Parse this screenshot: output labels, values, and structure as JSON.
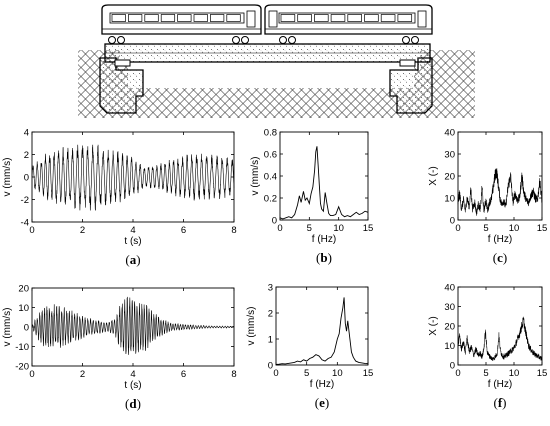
{
  "illustration": {
    "subject": "train on bridge"
  },
  "chart_data": [
    {
      "id": "a",
      "type": "line",
      "label": "a",
      "xlabel": "t (s)",
      "ylabel": "v (mm/s)",
      "xlim": [
        0,
        8
      ],
      "ylim": [
        -4,
        4
      ],
      "xticks": [
        0,
        2,
        4,
        6,
        8
      ],
      "yticks": [
        -4,
        -2,
        0,
        2,
        4
      ],
      "signal": "continuous vibration record; peak amplitude about 3.2 mm/s near t = 2 s, amplitude 1-2.5 mm/s elsewhere",
      "envelope": {
        "x": [
          0,
          0.3,
          0.6,
          1.0,
          1.5,
          2.0,
          2.3,
          2.7,
          3.0,
          3.5,
          4.0,
          4.5,
          5.0,
          5.5,
          6.0,
          6.5,
          7.0,
          7.5,
          8.0
        ],
        "y": [
          1.0,
          1.6,
          2.2,
          2.6,
          2.8,
          3.2,
          3.1,
          2.9,
          2.6,
          2.3,
          1.8,
          1.0,
          1.2,
          1.6,
          2.0,
          2.2,
          2.1,
          2.0,
          1.8
        ]
      },
      "carrier_hz": 5.5
    },
    {
      "id": "b",
      "type": "line",
      "label": "b",
      "xlabel": "f (Hz)",
      "ylabel": "v (mm/s)",
      "xlim": [
        0,
        15
      ],
      "ylim": [
        0,
        0.8
      ],
      "xticks": [
        0,
        5,
        10,
        15
      ],
      "yticks": [
        0,
        0.2,
        0.4,
        0.6,
        0.8
      ],
      "x": [
        0,
        0.5,
        1,
        1.5,
        2,
        2.5,
        3,
        3.3,
        3.6,
        4,
        4.3,
        4.6,
        5,
        5.3,
        5.6,
        5.9,
        6.1,
        6.3,
        6.5,
        6.7,
        6.9,
        7.1,
        7.4,
        7.7,
        8,
        8.3,
        8.6,
        9,
        9.5,
        10,
        10.5,
        11,
        11.5,
        12,
        12.5,
        13,
        13.5,
        14,
        14.5,
        15
      ],
      "y": [
        0.02,
        0.01,
        0.02,
        0.03,
        0.02,
        0.05,
        0.14,
        0.22,
        0.16,
        0.26,
        0.18,
        0.2,
        0.15,
        0.24,
        0.3,
        0.45,
        0.62,
        0.67,
        0.5,
        0.32,
        0.15,
        0.1,
        0.08,
        0.25,
        0.15,
        0.06,
        0.04,
        0.04,
        0.05,
        0.12,
        0.05,
        0.03,
        0.04,
        0.03,
        0.05,
        0.07,
        0.05,
        0.06,
        0.08,
        0.07
      ]
    },
    {
      "id": "c",
      "type": "line",
      "label": "c",
      "xlabel": "f (Hz)",
      "ylabel": "X (-)",
      "xlim": [
        0,
        15
      ],
      "ylim": [
        0,
        40
      ],
      "xticks": [
        0,
        5,
        10,
        15
      ],
      "yticks": [
        0,
        10,
        20,
        30,
        40
      ],
      "x": [
        0,
        0.3,
        0.6,
        1,
        1.3,
        1.6,
        2,
        2.3,
        2.6,
        3,
        3.3,
        3.6,
        4,
        4.3,
        4.6,
        5,
        5.3,
        5.6,
        6,
        6.3,
        6.6,
        6.9,
        7.2,
        7.5,
        7.8,
        8.1,
        8.5,
        9,
        9.4,
        9.8,
        10.2,
        10.6,
        11,
        11.4,
        11.8,
        12.2,
        12.6,
        13,
        13.4,
        13.8,
        14.2,
        14.6,
        15
      ],
      "y": [
        8,
        12,
        5,
        9,
        4,
        10,
        6,
        14,
        5,
        8,
        3,
        7,
        5,
        15,
        4,
        9,
        4,
        8,
        10,
        15,
        20,
        22,
        16,
        10,
        7,
        9,
        6,
        16,
        20,
        8,
        12,
        9,
        10,
        20,
        12,
        9,
        8,
        11,
        13,
        10,
        9,
        18,
        8
      ],
      "band": 3
    },
    {
      "id": "d",
      "type": "line",
      "label": "d",
      "xlabel": "t (s)",
      "ylabel": "v (mm/s)",
      "xlim": [
        0,
        8
      ],
      "ylim": [
        -20,
        20
      ],
      "xticks": [
        0,
        2,
        4,
        6,
        8
      ],
      "yticks": [
        -20,
        -10,
        0,
        10,
        20
      ],
      "signal": "two train-passage bursts: 0.2-2.5 s (peak about 12 mm/s) and 3.5-4.8 s (peak about 17 mm/s), small residual after 5 s",
      "envelope": {
        "x": [
          0,
          0.2,
          0.5,
          1.0,
          1.5,
          2.0,
          2.5,
          3.0,
          3.3,
          3.5,
          3.8,
          4.1,
          4.5,
          4.8,
          5.2,
          5.6,
          6.0,
          6.5,
          7.0,
          8.0
        ],
        "y": [
          0.5,
          6,
          11,
          12,
          9,
          6,
          4,
          2.5,
          5,
          12,
          17,
          16,
          13,
          8,
          4,
          2,
          1.5,
          1,
          0.6,
          0.4
        ]
      },
      "carrier_hz": 10
    },
    {
      "id": "e",
      "type": "line",
      "label": "e",
      "xlabel": "f (Hz)",
      "ylabel": "v (mm/s)",
      "xlim": [
        0,
        15
      ],
      "ylim": [
        0,
        3
      ],
      "xticks": [
        0,
        5,
        10,
        15
      ],
      "yticks": [
        0,
        1,
        2,
        3
      ],
      "x": [
        0,
        0.5,
        1,
        1.5,
        2,
        2.5,
        3,
        3.5,
        4,
        4.5,
        5,
        5.5,
        6,
        6.5,
        7,
        7.5,
        8,
        8.5,
        9,
        9.5,
        10,
        10.3,
        10.6,
        10.9,
        11.1,
        11.3,
        11.5,
        11.7,
        12,
        12.3,
        12.6,
        13,
        13.5,
        14,
        14.5,
        15
      ],
      "y": [
        0.02,
        0.03,
        0.05,
        0.04,
        0.06,
        0.08,
        0.1,
        0.15,
        0.12,
        0.2,
        0.15,
        0.25,
        0.3,
        0.4,
        0.35,
        0.2,
        0.15,
        0.25,
        0.3,
        0.5,
        1.0,
        1.2,
        1.8,
        2.2,
        2.6,
        1.6,
        1.3,
        1.7,
        1.1,
        0.5,
        0.3,
        0.15,
        0.1,
        0.08,
        0.06,
        0.05
      ]
    },
    {
      "id": "f",
      "type": "line",
      "label": "f",
      "xlabel": "f (Hz)",
      "ylabel": "X (-)",
      "xlim": [
        0,
        15
      ],
      "ylim": [
        0,
        40
      ],
      "xticks": [
        0,
        5,
        10,
        15
      ],
      "yticks": [
        0,
        10,
        20,
        30,
        40
      ],
      "x": [
        0,
        0.3,
        0.6,
        1,
        1.3,
        1.6,
        2,
        2.4,
        2.8,
        3.2,
        3.6,
        4,
        4.3,
        4.6,
        4.9,
        5.2,
        5.5,
        5.8,
        6.2,
        6.6,
        7,
        7.3,
        7.6,
        7.9,
        8.2,
        8.6,
        9,
        9.4,
        9.8,
        10.2,
        10.6,
        11,
        11.4,
        11.7,
        12,
        12.3,
        12.6,
        13,
        13.5,
        14,
        14.5,
        15
      ],
      "y": [
        10,
        15,
        8,
        12,
        6,
        14,
        7,
        9,
        5,
        8,
        5,
        6,
        4,
        8,
        17,
        7,
        5,
        4,
        3,
        4,
        6,
        15,
        7,
        5,
        4,
        5,
        6,
        7,
        8,
        10,
        13,
        16,
        20,
        23,
        18,
        14,
        10,
        8,
        6,
        5,
        4,
        3
      ],
      "band": 2.5
    }
  ]
}
